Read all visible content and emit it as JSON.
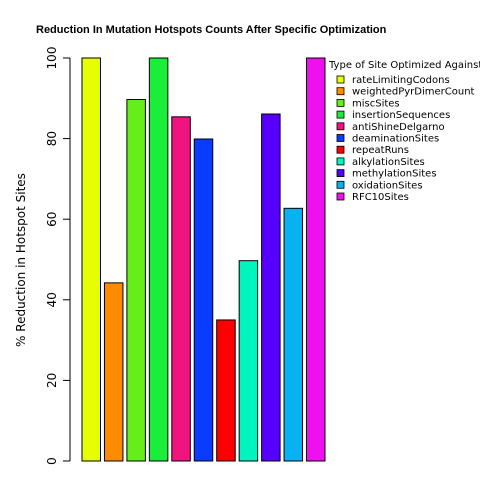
{
  "chart_data": {
    "type": "bar",
    "title": "Reduction In Mutation Hotspots Counts After Specific Optimization",
    "ylabel": "% Reduction in Hotspot Sites",
    "xlabel": "",
    "ylim": [
      0,
      100
    ],
    "yticks": [
      "0",
      "20",
      "40",
      "60",
      "80",
      "100"
    ],
    "grid": false,
    "legend": {
      "title": "Type of Site Optimized Against",
      "placement": "top-right"
    },
    "categories": [
      "rateLimitingCodons",
      "weightedPyrDimerCount",
      "miscSites",
      "insertionSequences",
      "antiShineDelgarno",
      "deaminationSites",
      "repeatRuns",
      "alkylationSites",
      "methylationSites",
      "oxidationSites",
      "RFC10Sites"
    ],
    "values": [
      100,
      44.2,
      89.7,
      100,
      85.4,
      79.9,
      35,
      49.7,
      86.1,
      62.7,
      100
    ],
    "colors": [
      "#E6FF00",
      "#FF8C00",
      "#66EE1A",
      "#1AEE3A",
      "#F0147F",
      "#0A3CFF",
      "#FF0000",
      "#00F5BE",
      "#5500FF",
      "#08B2F0",
      "#EE10EE"
    ]
  }
}
